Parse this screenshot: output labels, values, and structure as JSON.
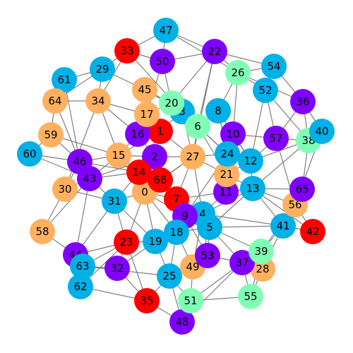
{
  "colors": {
    "red": "#ff0000",
    "orange": "#ffb060",
    "mint": "#80ffb4",
    "cyan": "#00b0e6",
    "purple": "#8000ff",
    "edge": "#808080",
    "label": "#000000"
  },
  "nodes": [
    {
      "id": "0",
      "color": "orange"
    },
    {
      "id": "1",
      "color": "red"
    },
    {
      "id": "2",
      "color": "purple"
    },
    {
      "id": "3",
      "color": "cyan"
    },
    {
      "id": "4",
      "color": "cyan"
    },
    {
      "id": "5",
      "color": "cyan"
    },
    {
      "id": "6",
      "color": "mint"
    },
    {
      "id": "7",
      "color": "red"
    },
    {
      "id": "8",
      "color": "cyan"
    },
    {
      "id": "9",
      "color": "purple"
    },
    {
      "id": "10",
      "color": "purple"
    },
    {
      "id": "11",
      "color": "purple"
    },
    {
      "id": "12",
      "color": "cyan"
    },
    {
      "id": "13",
      "color": "cyan"
    },
    {
      "id": "14",
      "color": "red"
    },
    {
      "id": "15",
      "color": "orange"
    },
    {
      "id": "16",
      "color": "purple"
    },
    {
      "id": "17",
      "color": "orange"
    },
    {
      "id": "18",
      "color": "cyan"
    },
    {
      "id": "19",
      "color": "cyan"
    },
    {
      "id": "20",
      "color": "mint"
    },
    {
      "id": "21",
      "color": "orange"
    },
    {
      "id": "22",
      "color": "purple"
    },
    {
      "id": "23",
      "color": "red"
    },
    {
      "id": "24",
      "color": "cyan"
    },
    {
      "id": "25",
      "color": "cyan"
    },
    {
      "id": "26",
      "color": "mint"
    },
    {
      "id": "27",
      "color": "orange"
    },
    {
      "id": "28",
      "color": "orange"
    },
    {
      "id": "29",
      "color": "cyan"
    },
    {
      "id": "30",
      "color": "orange"
    },
    {
      "id": "31",
      "color": "cyan"
    },
    {
      "id": "32",
      "color": "purple"
    },
    {
      "id": "33",
      "color": "red"
    },
    {
      "id": "34",
      "color": "orange"
    },
    {
      "id": "35",
      "color": "red"
    },
    {
      "id": "36",
      "color": "purple"
    },
    {
      "id": "37",
      "color": "purple"
    },
    {
      "id": "38",
      "color": "mint"
    },
    {
      "id": "39",
      "color": "mint"
    },
    {
      "id": "40",
      "color": "cyan"
    },
    {
      "id": "41",
      "color": "cyan"
    },
    {
      "id": "42",
      "color": "red"
    },
    {
      "id": "43",
      "color": "purple"
    },
    {
      "id": "44",
      "color": "purple"
    },
    {
      "id": "45",
      "color": "orange"
    },
    {
      "id": "46",
      "color": "purple"
    },
    {
      "id": "47",
      "color": "cyan"
    },
    {
      "id": "48",
      "color": "purple"
    },
    {
      "id": "49",
      "color": "orange"
    },
    {
      "id": "50",
      "color": "purple"
    },
    {
      "id": "51",
      "color": "mint"
    },
    {
      "id": "52",
      "color": "cyan"
    },
    {
      "id": "53",
      "color": "purple"
    },
    {
      "id": "54",
      "color": "cyan"
    },
    {
      "id": "55",
      "color": "mint"
    },
    {
      "id": "56",
      "color": "orange"
    },
    {
      "id": "57",
      "color": "purple"
    },
    {
      "id": "58",
      "color": "orange"
    },
    {
      "id": "59",
      "color": "orange"
    },
    {
      "id": "60",
      "color": "cyan"
    },
    {
      "id": "61",
      "color": "cyan"
    },
    {
      "id": "62",
      "color": "cyan"
    },
    {
      "id": "63",
      "color": "cyan"
    },
    {
      "id": "64",
      "color": "orange"
    },
    {
      "id": "65",
      "color": "purple"
    },
    {
      "id": "66",
      "color": "red"
    }
  ],
  "edges": [
    [
      "33",
      "47"
    ],
    [
      "33",
      "50"
    ],
    [
      "33",
      "29"
    ],
    [
      "33",
      "34"
    ],
    [
      "33",
      "3"
    ],
    [
      "47",
      "50"
    ],
    [
      "47",
      "22"
    ],
    [
      "47",
      "26"
    ],
    [
      "22",
      "50"
    ],
    [
      "22",
      "26"
    ],
    [
      "22",
      "20"
    ],
    [
      "22",
      "6"
    ],
    [
      "22",
      "54"
    ],
    [
      "22",
      "27"
    ],
    [
      "26",
      "54"
    ],
    [
      "26",
      "52"
    ],
    [
      "26",
      "8"
    ],
    [
      "26",
      "36"
    ],
    [
      "26",
      "10"
    ],
    [
      "54",
      "52"
    ],
    [
      "54",
      "36"
    ],
    [
      "52",
      "38"
    ],
    [
      "52",
      "12"
    ],
    [
      "52",
      "57"
    ],
    [
      "36",
      "38"
    ],
    [
      "36",
      "40"
    ],
    [
      "36",
      "57"
    ],
    [
      "38",
      "40"
    ],
    [
      "38",
      "57"
    ],
    [
      "38",
      "12"
    ],
    [
      "38",
      "65"
    ],
    [
      "38",
      "13"
    ],
    [
      "40",
      "56"
    ],
    [
      "29",
      "61"
    ],
    [
      "29",
      "34"
    ],
    [
      "29",
      "45"
    ],
    [
      "29",
      "64"
    ],
    [
      "61",
      "64"
    ],
    [
      "61",
      "46"
    ],
    [
      "64",
      "34"
    ],
    [
      "64",
      "59"
    ],
    [
      "64",
      "46"
    ],
    [
      "34",
      "17"
    ],
    [
      "34",
      "15"
    ],
    [
      "34",
      "16"
    ],
    [
      "34",
      "30"
    ],
    [
      "45",
      "17"
    ],
    [
      "45",
      "1"
    ],
    [
      "45",
      "20"
    ],
    [
      "45",
      "3"
    ],
    [
      "50",
      "20"
    ],
    [
      "50",
      "17"
    ],
    [
      "17",
      "20"
    ],
    [
      "17",
      "1"
    ],
    [
      "17",
      "16"
    ],
    [
      "20",
      "3"
    ],
    [
      "20",
      "6"
    ],
    [
      "3",
      "6"
    ],
    [
      "3",
      "1"
    ],
    [
      "3",
      "24"
    ],
    [
      "3",
      "27"
    ],
    [
      "8",
      "10"
    ],
    [
      "8",
      "6"
    ],
    [
      "8",
      "24"
    ],
    [
      "8",
      "12"
    ],
    [
      "6",
      "27"
    ],
    [
      "6",
      "24"
    ],
    [
      "6",
      "21"
    ],
    [
      "10",
      "24"
    ],
    [
      "10",
      "12"
    ],
    [
      "10",
      "11"
    ],
    [
      "10",
      "57"
    ],
    [
      "57",
      "12"
    ],
    [
      "57",
      "56"
    ],
    [
      "12",
      "24"
    ],
    [
      "12",
      "21"
    ],
    [
      "12",
      "13"
    ],
    [
      "24",
      "27"
    ],
    [
      "24",
      "21"
    ],
    [
      "24",
      "11"
    ],
    [
      "24",
      "9"
    ],
    [
      "21",
      "11"
    ],
    [
      "21",
      "13"
    ],
    [
      "21",
      "27"
    ],
    [
      "27",
      "2"
    ],
    [
      "27",
      "66"
    ],
    [
      "27",
      "7"
    ],
    [
      "27",
      "0"
    ],
    [
      "27",
      "4"
    ],
    [
      "27",
      "1"
    ],
    [
      "1",
      "16"
    ],
    [
      "1",
      "2"
    ],
    [
      "1",
      "14"
    ],
    [
      "1",
      "15"
    ],
    [
      "16",
      "2"
    ],
    [
      "16",
      "15"
    ],
    [
      "2",
      "14"
    ],
    [
      "2",
      "15"
    ],
    [
      "2",
      "66"
    ],
    [
      "2",
      "43"
    ],
    [
      "14",
      "66"
    ],
    [
      "14",
      "15"
    ],
    [
      "14",
      "0"
    ],
    [
      "14",
      "31"
    ],
    [
      "14",
      "43"
    ],
    [
      "14",
      "46"
    ],
    [
      "66",
      "7"
    ],
    [
      "66",
      "0"
    ],
    [
      "7",
      "9"
    ],
    [
      "7",
      "0"
    ],
    [
      "7",
      "18"
    ],
    [
      "9",
      "4"
    ],
    [
      "9",
      "18"
    ],
    [
      "9",
      "0"
    ],
    [
      "9",
      "5"
    ],
    [
      "9",
      "53"
    ],
    [
      "4",
      "5"
    ],
    [
      "4",
      "13"
    ],
    [
      "4",
      "11"
    ],
    [
      "4",
      "18"
    ],
    [
      "4",
      "53"
    ],
    [
      "4",
      "41"
    ],
    [
      "4",
      "49"
    ],
    [
      "5",
      "13"
    ],
    [
      "5",
      "41"
    ],
    [
      "5",
      "37"
    ],
    [
      "5",
      "53"
    ],
    [
      "5",
      "18"
    ],
    [
      "5",
      "39"
    ],
    [
      "13",
      "11"
    ],
    [
      "13",
      "65"
    ],
    [
      "13",
      "56"
    ],
    [
      "13",
      "41"
    ],
    [
      "11",
      "7"
    ],
    [
      "65",
      "56"
    ],
    [
      "65",
      "41"
    ],
    [
      "56",
      "42"
    ],
    [
      "56",
      "41"
    ],
    [
      "56",
      "39"
    ],
    [
      "41",
      "42"
    ],
    [
      "41",
      "39"
    ],
    [
      "41",
      "28"
    ],
    [
      "39",
      "28"
    ],
    [
      "39",
      "37"
    ],
    [
      "28",
      "37"
    ],
    [
      "28",
      "55"
    ],
    [
      "37",
      "53"
    ],
    [
      "37",
      "55"
    ],
    [
      "37",
      "51"
    ],
    [
      "53",
      "49"
    ],
    [
      "53",
      "25"
    ],
    [
      "49",
      "25"
    ],
    [
      "49",
      "51"
    ],
    [
      "49",
      "18"
    ],
    [
      "18",
      "19"
    ],
    [
      "18",
      "25"
    ],
    [
      "19",
      "23"
    ],
    [
      "19",
      "25"
    ],
    [
      "19",
      "31"
    ],
    [
      "19",
      "0"
    ],
    [
      "23",
      "31"
    ],
    [
      "23",
      "32"
    ],
    [
      "23",
      "35"
    ],
    [
      "23",
      "63"
    ],
    [
      "23",
      "0"
    ],
    [
      "31",
      "43"
    ],
    [
      "31",
      "0"
    ],
    [
      "31",
      "30"
    ],
    [
      "43",
      "46"
    ],
    [
      "43",
      "30"
    ],
    [
      "43",
      "44"
    ],
    [
      "43",
      "58"
    ],
    [
      "43",
      "15"
    ],
    [
      "46",
      "15"
    ],
    [
      "46",
      "59"
    ],
    [
      "46",
      "60"
    ],
    [
      "46",
      "30"
    ],
    [
      "59",
      "60"
    ],
    [
      "59",
      "15"
    ],
    [
      "60",
      "43"
    ],
    [
      "30",
      "58"
    ],
    [
      "58",
      "44"
    ],
    [
      "44",
      "63"
    ],
    [
      "44",
      "62"
    ],
    [
      "44",
      "23"
    ],
    [
      "63",
      "62"
    ],
    [
      "63",
      "32"
    ],
    [
      "63",
      "25"
    ],
    [
      "62",
      "35"
    ],
    [
      "32",
      "35"
    ],
    [
      "32",
      "19"
    ],
    [
      "35",
      "25"
    ],
    [
      "35",
      "48"
    ],
    [
      "25",
      "48"
    ],
    [
      "25",
      "51"
    ],
    [
      "48",
      "51"
    ],
    [
      "51",
      "55"
    ],
    [
      "0",
      "18"
    ],
    [
      "15",
      "0"
    ],
    [
      "42",
      "13"
    ],
    [
      "48",
      "37"
    ],
    [
      "55",
      "39"
    ],
    [
      "62",
      "23"
    ],
    [
      "44",
      "31"
    ]
  ]
}
